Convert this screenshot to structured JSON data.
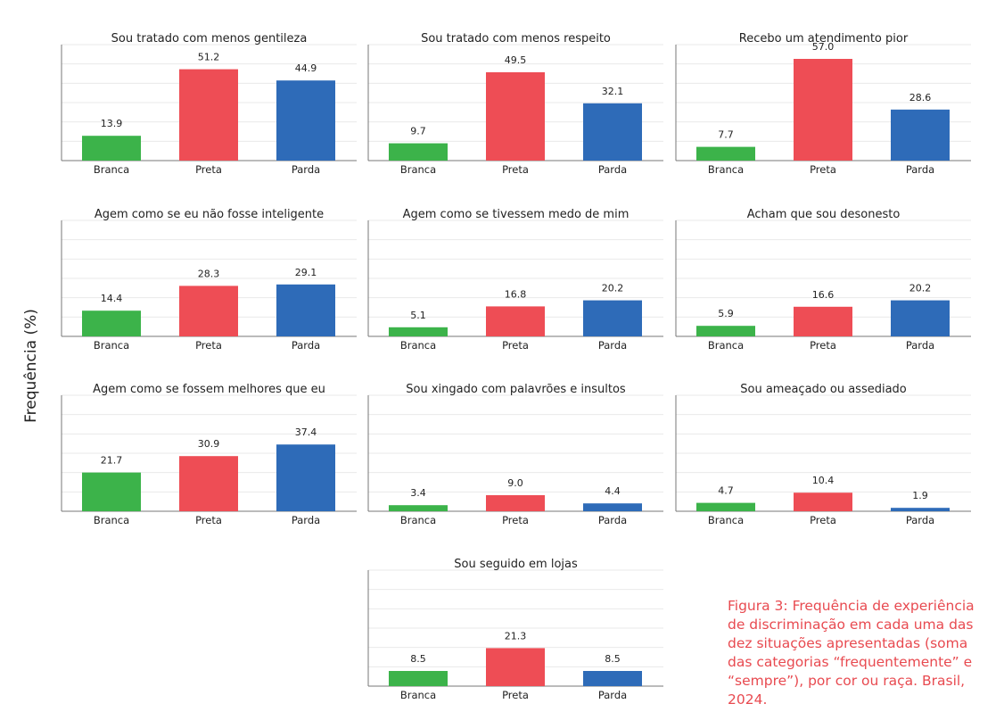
{
  "ylabel": "Frequência (%)",
  "caption": "Figura 3: Frequência de experiência de discriminação em cada uma das dez situações apresentadas (soma das categorias “frequentemente” e “sempre”), por cor ou raça. Brasil, 2024.",
  "colors": {
    "Branca": "#3cb34a",
    "Preta": "#ee4d55",
    "Parda": "#2e6bb8",
    "grid": "#e9e9e9",
    "axis": "#777777"
  },
  "chart_data": [
    {
      "type": "bar",
      "title": "Sou tratado com menos gentileza",
      "categories": [
        "Branca",
        "Preta",
        "Parda"
      ],
      "values": [
        13.9,
        51.2,
        44.9
      ],
      "labels": [
        "13.9",
        "51.2",
        "44.9"
      ],
      "ylim": [
        0,
        65
      ],
      "grid": true
    },
    {
      "type": "bar",
      "title": "Sou tratado com menos respeito",
      "categories": [
        "Branca",
        "Preta",
        "Parda"
      ],
      "values": [
        9.7,
        49.5,
        32.1
      ],
      "labels": [
        "9.7",
        "49.5",
        "32.1"
      ],
      "ylim": [
        0,
        65
      ],
      "grid": true
    },
    {
      "type": "bar",
      "title": "Recebo um atendimento pior",
      "categories": [
        "Branca",
        "Preta",
        "Parda"
      ],
      "values": [
        7.7,
        57.0,
        28.6
      ],
      "labels": [
        "7.7",
        "57.0",
        "28.6"
      ],
      "ylim": [
        0,
        65
      ],
      "grid": true
    },
    {
      "type": "bar",
      "title": "Agem como se eu não fosse inteligente",
      "categories": [
        "Branca",
        "Preta",
        "Parda"
      ],
      "values": [
        14.4,
        28.3,
        29.1
      ],
      "labels": [
        "14.4",
        "28.3",
        "29.1"
      ],
      "ylim": [
        0,
        65
      ],
      "grid": true
    },
    {
      "type": "bar",
      "title": "Agem como se tivessem medo de mim",
      "categories": [
        "Branca",
        "Preta",
        "Parda"
      ],
      "values": [
        5.1,
        16.8,
        20.2
      ],
      "labels": [
        "5.1",
        "16.8",
        "20.2"
      ],
      "ylim": [
        0,
        65
      ],
      "grid": true
    },
    {
      "type": "bar",
      "title": "Acham que sou desonesto",
      "categories": [
        "Branca",
        "Preta",
        "Parda"
      ],
      "values": [
        5.9,
        16.6,
        20.2
      ],
      "labels": [
        "5.9",
        "16.6",
        "20.2"
      ],
      "ylim": [
        0,
        65
      ],
      "grid": true
    },
    {
      "type": "bar",
      "title": "Agem como se fossem melhores que eu",
      "categories": [
        "Branca",
        "Preta",
        "Parda"
      ],
      "values": [
        21.7,
        30.9,
        37.4
      ],
      "labels": [
        "21.7",
        "30.9",
        "37.4"
      ],
      "ylim": [
        0,
        65
      ],
      "grid": true
    },
    {
      "type": "bar",
      "title": "Sou xingado com palavrões e insultos",
      "categories": [
        "Branca",
        "Preta",
        "Parda"
      ],
      "values": [
        3.4,
        9.0,
        4.4
      ],
      "labels": [
        "3.4",
        "9.0",
        "4.4"
      ],
      "ylim": [
        0,
        65
      ],
      "grid": true
    },
    {
      "type": "bar",
      "title": "Sou ameaçado ou assediado",
      "categories": [
        "Branca",
        "Preta",
        "Parda"
      ],
      "values": [
        4.7,
        10.4,
        1.9
      ],
      "labels": [
        "4.7",
        "10.4",
        "1.9"
      ],
      "ylim": [
        0,
        65
      ],
      "grid": true
    },
    {
      "type": "bar",
      "title": "Sou seguido em lojas",
      "categories": [
        "Branca",
        "Preta",
        "Parda"
      ],
      "values": [
        8.5,
        21.3,
        8.5
      ],
      "labels": [
        "8.5",
        "21.3",
        "8.5"
      ],
      "ylim": [
        0,
        65
      ],
      "grid": true
    }
  ]
}
